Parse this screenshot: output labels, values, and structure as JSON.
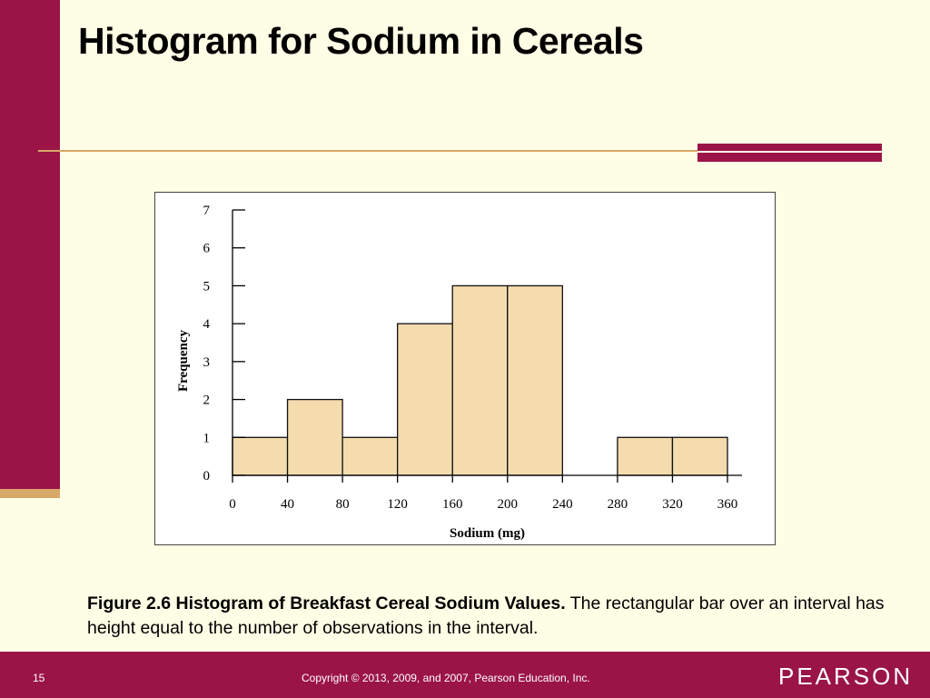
{
  "colors": {
    "maroon": "#9b1448",
    "gold": "#d8a868",
    "background": "#fefee6",
    "bar_fill": "#f5dcae",
    "bar_stroke": "#111111"
  },
  "slide": {
    "title": "Histogram for Sodium in Cereals",
    "page_number": "15",
    "copyright": "Copyright © 2013, 2009, and 2007, Pearson Education, Inc.",
    "brand": "PEARSON"
  },
  "caption": {
    "bold": "Figure 2.6 Histogram of Breakfast Cereal Sodium Values.",
    "text": " The rectangular bar over an interval has height equal to the number of observations in the interval."
  },
  "chart_data": {
    "type": "bar",
    "bins": [
      [
        0,
        40
      ],
      [
        40,
        80
      ],
      [
        80,
        120
      ],
      [
        120,
        160
      ],
      [
        160,
        200
      ],
      [
        200,
        240
      ],
      [
        240,
        280
      ],
      [
        280,
        320
      ],
      [
        320,
        360
      ]
    ],
    "values": [
      1,
      2,
      1,
      4,
      5,
      5,
      0,
      1,
      1
    ],
    "xlabel": "Sodium (mg)",
    "ylabel": "Frequency",
    "xlim": [
      0,
      360
    ],
    "ylim": [
      0,
      7
    ],
    "x_ticks": [
      "0",
      "40",
      "80",
      "120",
      "160",
      "200",
      "240",
      "280",
      "320",
      "360"
    ],
    "y_ticks": [
      "0",
      "1",
      "2",
      "3",
      "4",
      "5",
      "6",
      "7"
    ],
    "grid": false
  }
}
